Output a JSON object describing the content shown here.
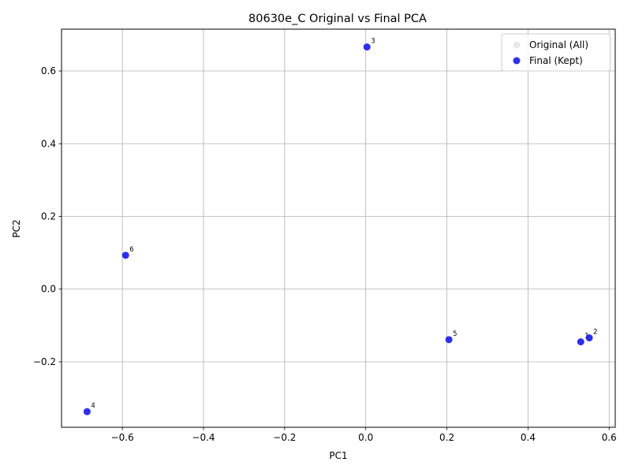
{
  "chart_data": {
    "type": "scatter",
    "title": "80630e_C Original vs Final PCA",
    "xlabel": "PC1",
    "ylabel": "PC2",
    "xlim": [
      -0.75,
      0.615
    ],
    "ylim": [
      -0.38,
      0.715
    ],
    "xticks": [
      -0.6,
      -0.4,
      -0.2,
      0.0,
      0.2,
      0.4,
      0.6
    ],
    "xtick_labels": [
      "−0.6",
      "−0.4",
      "−0.2",
      "0.0",
      "0.2",
      "0.4",
      "0.6"
    ],
    "yticks": [
      -0.2,
      0.0,
      0.2,
      0.4,
      0.6
    ],
    "ytick_labels": [
      "−0.2",
      "0.0",
      "0.2",
      "0.4",
      "0.6"
    ],
    "grid": true,
    "legend_position": "top-right",
    "series": [
      {
        "name": "Original (All)",
        "color": "#d9d9d9",
        "points": [
          {
            "label": "1",
            "x": 0.53,
            "y": -0.145
          },
          {
            "label": "2",
            "x": 0.551,
            "y": -0.134
          },
          {
            "label": "3",
            "x": 0.003,
            "y": 0.666
          },
          {
            "label": "4",
            "x": -0.687,
            "y": -0.337
          },
          {
            "label": "5",
            "x": 0.205,
            "y": -0.139
          },
          {
            "label": "6",
            "x": -0.592,
            "y": 0.093
          }
        ]
      },
      {
        "name": "Final (Kept)",
        "color": "#1a1aee",
        "points": [
          {
            "label": "1",
            "x": 0.53,
            "y": -0.145
          },
          {
            "label": "2",
            "x": 0.551,
            "y": -0.134
          },
          {
            "label": "3",
            "x": 0.003,
            "y": 0.666
          },
          {
            "label": "4",
            "x": -0.687,
            "y": -0.337
          },
          {
            "label": "5",
            "x": 0.205,
            "y": -0.139
          },
          {
            "label": "6",
            "x": -0.592,
            "y": 0.093
          }
        ]
      }
    ]
  }
}
